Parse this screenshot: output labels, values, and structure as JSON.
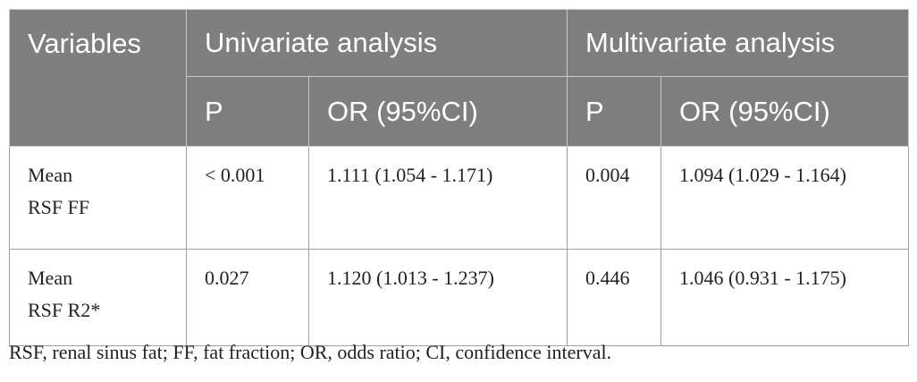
{
  "table": {
    "header": {
      "variables": "Variables",
      "univariate": "Univariate analysis",
      "multivariate": "Multivariate analysis",
      "p_uni": "P",
      "or_uni": "OR (95%CI)",
      "p_multi": "P",
      "or_multi": "OR (95%CI)"
    },
    "rows": [
      {
        "variable_line1": "Mean",
        "variable_line2": "RSF FF",
        "p_uni": "< 0.001",
        "or_uni": "1.111 (1.054 - 1.171)",
        "p_multi": "0.004",
        "or_multi": "1.094 (1.029 - 1.164)"
      },
      {
        "variable_line1": "Mean",
        "variable_line2": "RSF R2*",
        "p_uni": "0.027",
        "or_uni": "1.120 (1.013 - 1.237)",
        "p_multi": "0.446",
        "or_multi": "1.046 (0.931 - 1.175)"
      }
    ]
  },
  "footnote": "RSF, renal sinus fat; FF, fat fraction; OR, odds ratio; CI, confidence interval."
}
